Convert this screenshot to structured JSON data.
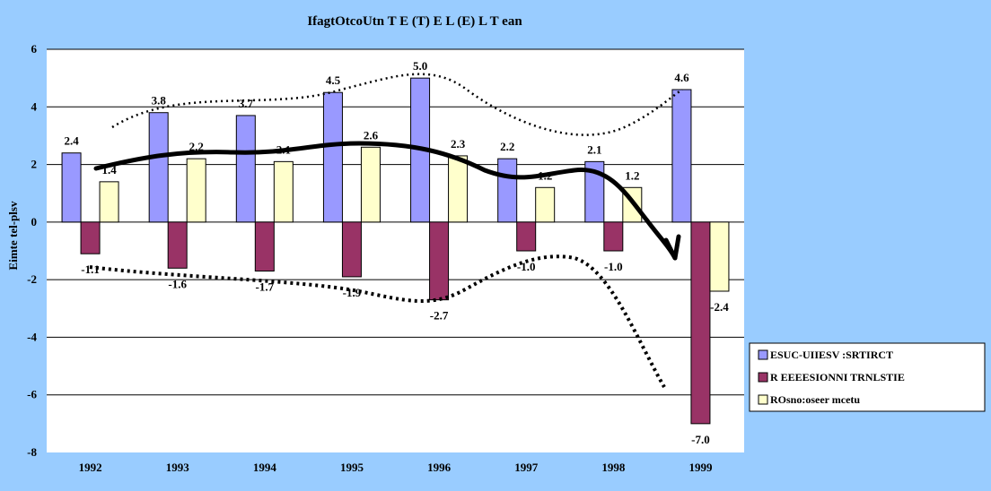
{
  "chart_data": {
    "type": "bar",
    "title": "IfagtOtcoUtn  T  E  (T)   E   L  (E)   L   T  ean",
    "ylabel": "Eimte tel-plsv",
    "xlabel": "",
    "categories": [
      "1992",
      "1993",
      "1994",
      "1995",
      "1996",
      "1997",
      "1998",
      "1999"
    ],
    "ylim": [
      -8,
      6
    ],
    "yticks": [
      -8,
      -6,
      -4,
      -2,
      0,
      2,
      4,
      6
    ],
    "grid": true,
    "legend_position": "right",
    "series": [
      {
        "name": "ESUC-UIIESV :SRTIRCT",
        "values": [
          2.4,
          3.8,
          3.7,
          4.5,
          5.0,
          2.2,
          2.1,
          4.6
        ],
        "labels": [
          "2.4",
          "3.8",
          "3.7",
          "4.5",
          "5.0",
          "2.2",
          "2.1",
          "4.6"
        ],
        "color": "#9999ff"
      },
      {
        "name": "R EEEESIONNI TRNLSTIE",
        "values": [
          -1.1,
          -1.6,
          -1.7,
          -1.9,
          -2.7,
          -1.0,
          -1.0,
          -7.0
        ],
        "labels": [
          "-1.1",
          "-1.6",
          "-1.7",
          "-1.9",
          "-2.7",
          "-1.0",
          "-1.0",
          "-7.0"
        ],
        "color": "#993366"
      },
      {
        "name": "ROsno:oseer mcetu",
        "values": [
          1.4,
          2.2,
          2.1,
          2.6,
          2.3,
          1.2,
          1.2,
          -2.4
        ],
        "labels": [
          "1.4",
          "2.2",
          "2.1",
          "2.6",
          "2.3",
          "1.2",
          "1.2",
          "-2.4"
        ],
        "color": "#ffffcc"
      }
    ],
    "colors": {
      "background": "#99ccff",
      "plot_area": "#ffffff",
      "legend_background": "#ffffff"
    }
  }
}
